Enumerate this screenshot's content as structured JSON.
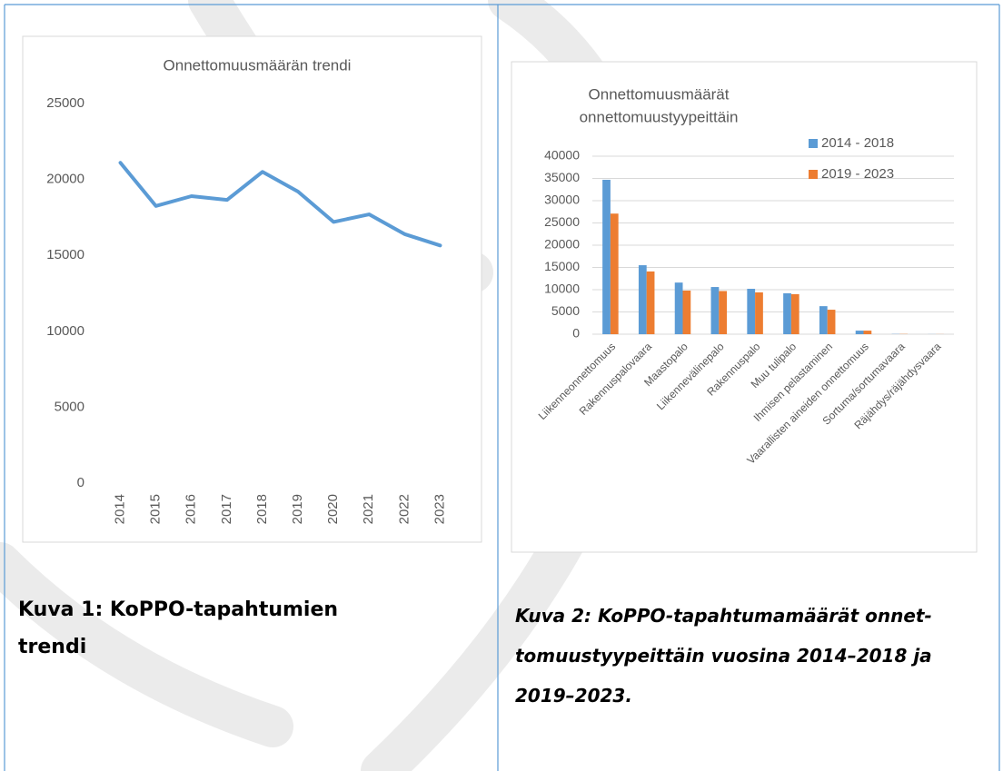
{
  "chart_data": [
    {
      "type": "line",
      "title": "Onnettomuusmäärän trendi",
      "categories": [
        "2014",
        "2015",
        "2016",
        "2017",
        "2018",
        "2019",
        "2020",
        "2021",
        "2022",
        "2023"
      ],
      "values": [
        21100,
        18250,
        18900,
        18650,
        20500,
        19200,
        17200,
        17700,
        16400,
        15650
      ],
      "color": "#5b9bd5",
      "ylim": [
        0,
        25000
      ],
      "yticks": [
        0,
        5000,
        10000,
        15000,
        20000,
        25000
      ],
      "grid": false
    },
    {
      "type": "bar",
      "title": [
        "Onnettomuusmäärät",
        "onnettomuustyypeittäin"
      ],
      "categories": [
        "Liikenneonnettomuus",
        "Rakennuspalovaara",
        "Maastopalo",
        "Liikennevälinepalo",
        "Rakennuspalo",
        "Muu tulipalo",
        "Ihmisen pelastaminen",
        "Vaarallisten aineiden onnettomuus",
        "Sortuma/sortumavaara",
        "Räjähdys/räjähdysvaara"
      ],
      "series": [
        {
          "name": "2014 - 2018",
          "color": "#5b9bd5",
          "values": [
            34700,
            15500,
            11600,
            10600,
            10200,
            9200,
            6300,
            800,
            50,
            20
          ]
        },
        {
          "name": "2019 - 2023",
          "color": "#ed7d31",
          "values": [
            27100,
            14100,
            9800,
            9700,
            9400,
            9000,
            5500,
            800,
            50,
            20
          ]
        }
      ],
      "ylim": [
        0,
        40000
      ],
      "yticks": [
        0,
        5000,
        10000,
        15000,
        20000,
        25000,
        30000,
        35000,
        40000
      ],
      "grid": true,
      "legend": "top-right"
    }
  ],
  "captions": [
    [
      "Kuva 1: KoPPO-tapahtumien",
      "trendi"
    ],
    [
      "Kuva 2: KoPPO-tapahtumamäärät onnet-",
      "tomuustyypeittäin vuosina 2014–2018 ja",
      "2019–2023."
    ]
  ]
}
